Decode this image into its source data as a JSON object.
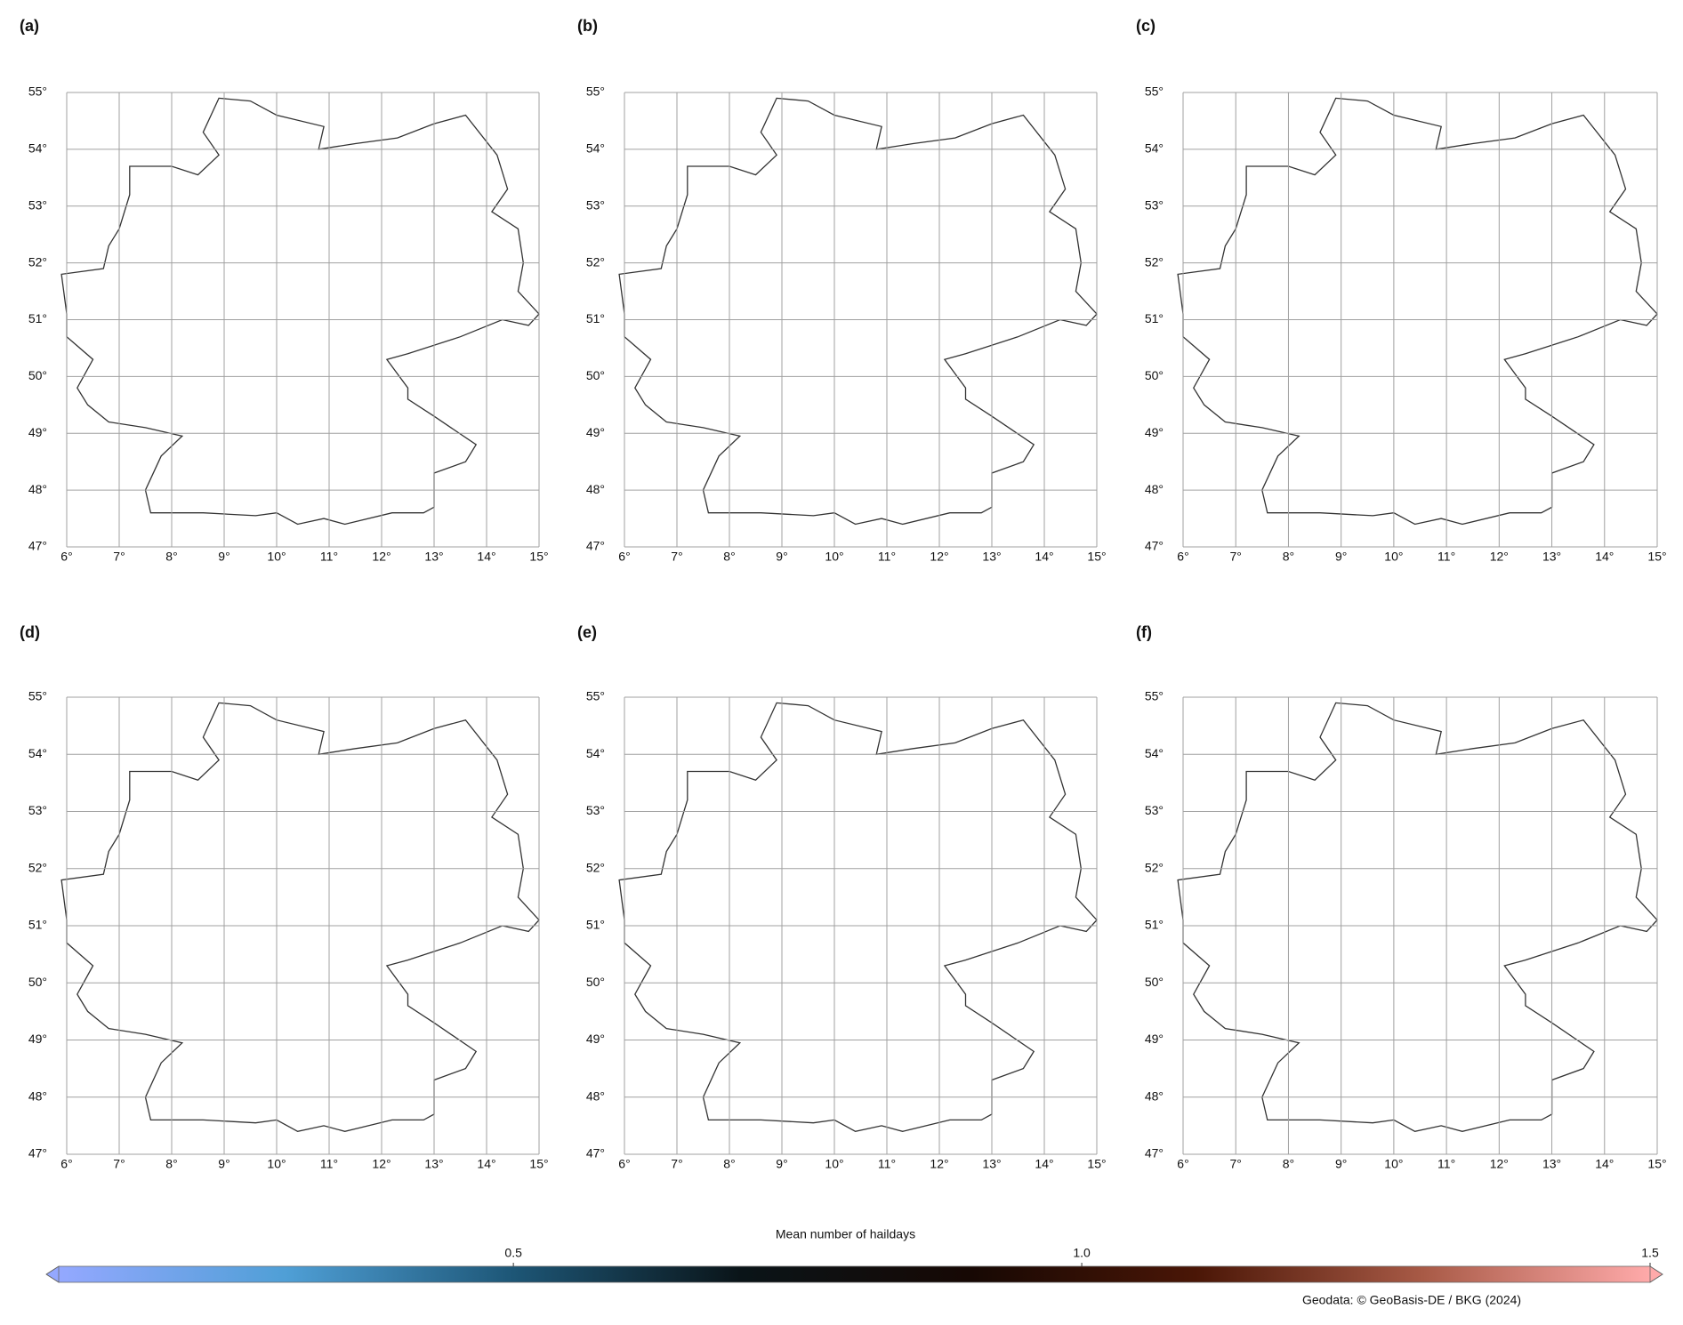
{
  "chart_data": [
    {
      "type": "map",
      "label": "(a)",
      "xlim": [
        6,
        15
      ],
      "ylim": [
        47,
        55
      ],
      "xticks": [
        {
          "value": 6,
          "label": "6°"
        },
        {
          "value": 7,
          "label": "7°"
        },
        {
          "value": 8,
          "label": "8°"
        },
        {
          "value": 9,
          "label": "9°"
        },
        {
          "value": 10,
          "label": "10°"
        },
        {
          "value": 11,
          "label": "11°"
        },
        {
          "value": 12,
          "label": "12°"
        },
        {
          "value": 13,
          "label": "13°"
        },
        {
          "value": 14,
          "label": "14°"
        },
        {
          "value": 15,
          "label": "15°"
        }
      ],
      "yticks": [
        {
          "value": 47,
          "label": "47°"
        },
        {
          "value": 48,
          "label": "48°"
        },
        {
          "value": 49,
          "label": "49°"
        },
        {
          "value": 50,
          "label": "50°"
        },
        {
          "value": 51,
          "label": "51°"
        },
        {
          "value": 52,
          "label": "52°"
        },
        {
          "value": 53,
          "label": "53°"
        },
        {
          "value": 54,
          "label": "54°"
        },
        {
          "value": 55,
          "label": "55°"
        }
      ],
      "grid": true
    },
    {
      "type": "map",
      "label": "(b)",
      "xlim": [
        6,
        15
      ],
      "ylim": [
        47,
        55
      ],
      "xticks": [
        {
          "value": 6,
          "label": "6°"
        },
        {
          "value": 7,
          "label": "7°"
        },
        {
          "value": 8,
          "label": "8°"
        },
        {
          "value": 9,
          "label": "9°"
        },
        {
          "value": 10,
          "label": "10°"
        },
        {
          "value": 11,
          "label": "11°"
        },
        {
          "value": 12,
          "label": "12°"
        },
        {
          "value": 13,
          "label": "13°"
        },
        {
          "value": 14,
          "label": "14°"
        },
        {
          "value": 15,
          "label": "15°"
        }
      ],
      "yticks": [
        {
          "value": 47,
          "label": "47°"
        },
        {
          "value": 48,
          "label": "48°"
        },
        {
          "value": 49,
          "label": "49°"
        },
        {
          "value": 50,
          "label": "50°"
        },
        {
          "value": 51,
          "label": "51°"
        },
        {
          "value": 52,
          "label": "52°"
        },
        {
          "value": 53,
          "label": "53°"
        },
        {
          "value": 54,
          "label": "54°"
        },
        {
          "value": 55,
          "label": "55°"
        }
      ],
      "grid": true
    },
    {
      "type": "map",
      "label": "(c)",
      "xlim": [
        6,
        15
      ],
      "ylim": [
        47,
        55
      ],
      "xticks": [
        {
          "value": 6,
          "label": "6°"
        },
        {
          "value": 7,
          "label": "7°"
        },
        {
          "value": 8,
          "label": "8°"
        },
        {
          "value": 9,
          "label": "9°"
        },
        {
          "value": 10,
          "label": "10°"
        },
        {
          "value": 11,
          "label": "11°"
        },
        {
          "value": 12,
          "label": "12°"
        },
        {
          "value": 13,
          "label": "13°"
        },
        {
          "value": 14,
          "label": "14°"
        },
        {
          "value": 15,
          "label": "15°"
        }
      ],
      "yticks": [
        {
          "value": 47,
          "label": "47°"
        },
        {
          "value": 48,
          "label": "48°"
        },
        {
          "value": 49,
          "label": "49°"
        },
        {
          "value": 50,
          "label": "50°"
        },
        {
          "value": 51,
          "label": "51°"
        },
        {
          "value": 52,
          "label": "52°"
        },
        {
          "value": 53,
          "label": "53°"
        },
        {
          "value": 54,
          "label": "54°"
        },
        {
          "value": 55,
          "label": "55°"
        }
      ],
      "grid": true
    },
    {
      "type": "map",
      "label": "(d)",
      "xlim": [
        6,
        15
      ],
      "ylim": [
        47,
        55
      ],
      "xticks": [
        {
          "value": 6,
          "label": "6°"
        },
        {
          "value": 7,
          "label": "7°"
        },
        {
          "value": 8,
          "label": "8°"
        },
        {
          "value": 9,
          "label": "9°"
        },
        {
          "value": 10,
          "label": "10°"
        },
        {
          "value": 11,
          "label": "11°"
        },
        {
          "value": 12,
          "label": "12°"
        },
        {
          "value": 13,
          "label": "13°"
        },
        {
          "value": 14,
          "label": "14°"
        },
        {
          "value": 15,
          "label": "15°"
        }
      ],
      "yticks": [
        {
          "value": 47,
          "label": "47°"
        },
        {
          "value": 48,
          "label": "48°"
        },
        {
          "value": 49,
          "label": "49°"
        },
        {
          "value": 50,
          "label": "50°"
        },
        {
          "value": 51,
          "label": "51°"
        },
        {
          "value": 52,
          "label": "52°"
        },
        {
          "value": 53,
          "label": "53°"
        },
        {
          "value": 54,
          "label": "54°"
        },
        {
          "value": 55,
          "label": "55°"
        }
      ],
      "grid": true
    },
    {
      "type": "map",
      "label": "(e)",
      "xlim": [
        6,
        15
      ],
      "ylim": [
        47,
        55
      ],
      "xticks": [
        {
          "value": 6,
          "label": "6°"
        },
        {
          "value": 7,
          "label": "7°"
        },
        {
          "value": 8,
          "label": "8°"
        },
        {
          "value": 9,
          "label": "9°"
        },
        {
          "value": 10,
          "label": "10°"
        },
        {
          "value": 11,
          "label": "11°"
        },
        {
          "value": 12,
          "label": "12°"
        },
        {
          "value": 13,
          "label": "13°"
        },
        {
          "value": 14,
          "label": "14°"
        },
        {
          "value": 15,
          "label": "15°"
        }
      ],
      "yticks": [
        {
          "value": 47,
          "label": "47°"
        },
        {
          "value": 48,
          "label": "48°"
        },
        {
          "value": 49,
          "label": "49°"
        },
        {
          "value": 50,
          "label": "50°"
        },
        {
          "value": 51,
          "label": "51°"
        },
        {
          "value": 52,
          "label": "52°"
        },
        {
          "value": 53,
          "label": "53°"
        },
        {
          "value": 54,
          "label": "54°"
        },
        {
          "value": 55,
          "label": "55°"
        }
      ],
      "grid": true
    },
    {
      "type": "map",
      "label": "(f)",
      "xlim": [
        6,
        15
      ],
      "ylim": [
        47,
        55
      ],
      "xticks": [
        {
          "value": 6,
          "label": "6°"
        },
        {
          "value": 7,
          "label": "7°"
        },
        {
          "value": 8,
          "label": "8°"
        },
        {
          "value": 9,
          "label": "9°"
        },
        {
          "value": 10,
          "label": "10°"
        },
        {
          "value": 11,
          "label": "11°"
        },
        {
          "value": 12,
          "label": "12°"
        },
        {
          "value": 13,
          "label": "13°"
        },
        {
          "value": 14,
          "label": "14°"
        },
        {
          "value": 15,
          "label": "15°"
        }
      ],
      "yticks": [
        {
          "value": 47,
          "label": "47°"
        },
        {
          "value": 48,
          "label": "48°"
        },
        {
          "value": 49,
          "label": "49°"
        },
        {
          "value": 50,
          "label": "50°"
        },
        {
          "value": 51,
          "label": "51°"
        },
        {
          "value": 52,
          "label": "52°"
        },
        {
          "value": 53,
          "label": "53°"
        },
        {
          "value": 54,
          "label": "54°"
        },
        {
          "value": 55,
          "label": "55°"
        }
      ],
      "grid": true
    },
    {
      "type": "colorbar",
      "title": "Mean number of haildays",
      "xlim": [
        0.1,
        1.5
      ],
      "xticks": [
        0.5,
        {
          "value": 1,
          "label": "1.0"
        },
        1.5
      ],
      "colors": [
        "#94a8ff",
        "#4f9fd6",
        "#1d5676",
        "#0a1418",
        "#160804",
        "#4a1606",
        "#a85a46",
        "#ffaaaa"
      ]
    }
  ],
  "source": "Geodata: © GeoBasis-DE / BKG (2024)"
}
